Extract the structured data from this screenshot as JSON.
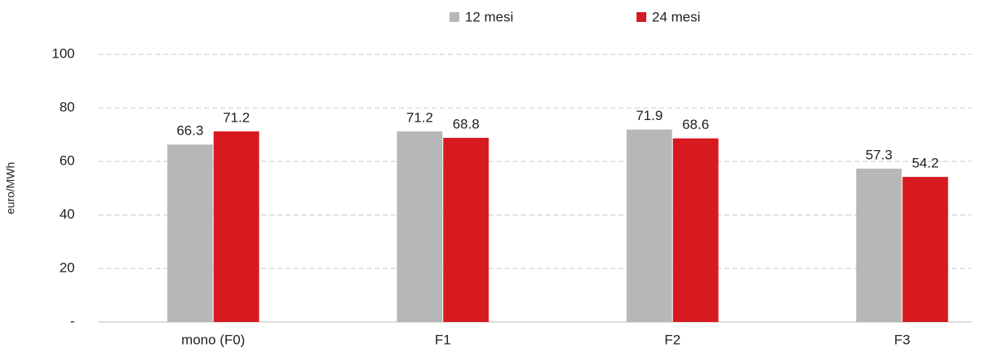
{
  "chart_data": {
    "type": "bar",
    "y_label": "euro/MWh",
    "categories": [
      "mono (F0)",
      "F1",
      "F2",
      "F3"
    ],
    "series": [
      {
        "name": "12 mesi",
        "color": "#b7b7b7",
        "values": [
          66.3,
          71.2,
          71.9,
          57.3
        ]
      },
      {
        "name": "24 mesi",
        "color": "#d71920",
        "values": [
          71.2,
          68.8,
          68.6,
          54.2
        ]
      }
    ],
    "ylim": [
      0,
      100
    ],
    "yticks": [
      {
        "value": 0,
        "label": "-"
      },
      20,
      40,
      60,
      80,
      100
    ],
    "grid": true,
    "legend": "top"
  }
}
